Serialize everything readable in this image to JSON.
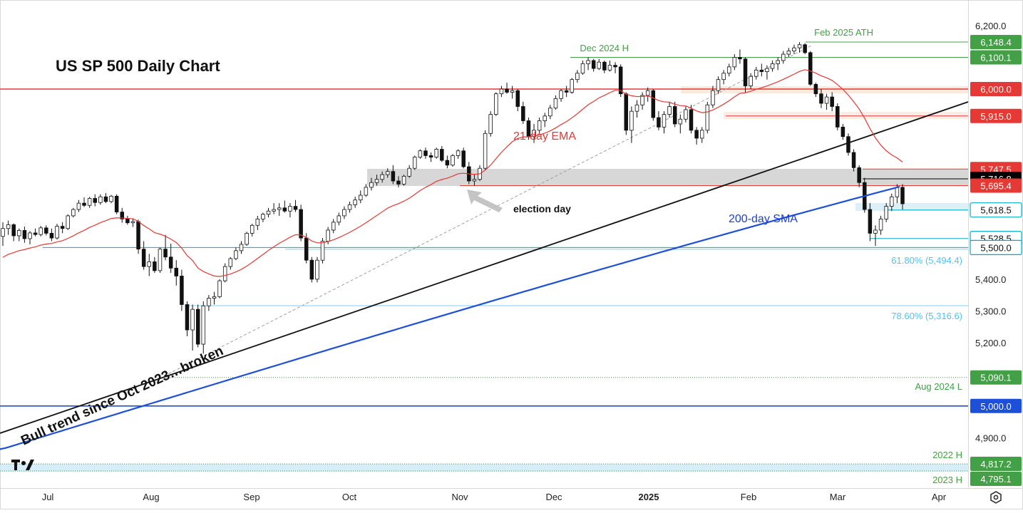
{
  "title": "US SP 500 Daily Chart",
  "chart_data": {
    "type": "candlestick",
    "title": "US SP 500 Daily Chart",
    "x_labels": [
      "Jul",
      "Aug",
      "Sep",
      "Oct",
      "Nov",
      "Dec",
      "2025",
      "Feb",
      "Mar",
      "Apr"
    ],
    "x_labels_bold": [
      "2025"
    ],
    "y_ticks": [
      "6,200.0",
      "5,400.0",
      "5,300.0",
      "5,200.0",
      "4,900.0"
    ],
    "ylim": [
      4770,
      6235
    ],
    "levels": [
      {
        "value": 6148.4,
        "label": "6,148.4",
        "color": "#43a047",
        "style": "solid",
        "note": "Feb 2025 ATH"
      },
      {
        "value": 6100.1,
        "label": "6,100.1",
        "color": "#43a047",
        "style": "solid",
        "note": "Dec 2024 H"
      },
      {
        "value": 6000.0,
        "label": "6,000.0",
        "color": "#e53935",
        "style": "solid",
        "note": ""
      },
      {
        "value": 5915.0,
        "label": "5,915.0",
        "color": "#e53935",
        "style": "solid",
        "note": ""
      },
      {
        "value": 5747.5,
        "label": "5,747.5",
        "color": "#e53935",
        "style": "solid",
        "note": ""
      },
      {
        "value": 5716.8,
        "label": "5,716.8",
        "color": "#000000",
        "style": "solid",
        "note": ""
      },
      {
        "value": 5695.4,
        "label": "5,695.4",
        "color": "#e53935",
        "style": "solid",
        "note": ""
      },
      {
        "value": 5618.5,
        "label": "5,618.5",
        "color": "#00acc1",
        "style": "solid",
        "note": ""
      },
      {
        "value": 5528.5,
        "label": "5,528.5",
        "color": "#00acc1",
        "style": "solid",
        "note": ""
      },
      {
        "value": 5500.0,
        "label": "5,500.0",
        "color": "#00acc1",
        "style": "solid",
        "note": ""
      },
      {
        "value": 5090.1,
        "label": "5,090.1",
        "color": "#43a047",
        "style": "dotted",
        "note": "Aug 2024 L"
      },
      {
        "value": 5000.0,
        "label": "5,000.0",
        "color": "#1e4fd8",
        "style": "solid",
        "note": ""
      },
      {
        "value": 4817.2,
        "label": "4,817.2",
        "color": "#43a047",
        "style": "dotted",
        "note": "2022 H"
      },
      {
        "value": 4795.1,
        "label": "4,795.1",
        "color": "#43a047",
        "style": "dotted",
        "note": "2023 H"
      }
    ],
    "fib_levels": [
      {
        "value": 5494.4,
        "label": "61.80% (5,494.4)"
      },
      {
        "value": 5316.6,
        "label": "78.60% (5,316.6)"
      }
    ],
    "series": [
      {
        "name": "21-day EMA",
        "color": "#e53935"
      },
      {
        "name": "200-day SMA",
        "color": "#1e4fd8"
      }
    ],
    "annotations": {
      "election": "election day",
      "trend": "Bull trend since Oct 2023…broken"
    },
    "candles": [
      [
        5535,
        5580,
        5505,
        5560
      ],
      [
        5560,
        5585,
        5540,
        5572
      ],
      [
        5572,
        5576,
        5520,
        5537
      ],
      [
        5537,
        5560,
        5520,
        5554
      ],
      [
        5554,
        5566,
        5515,
        5528
      ],
      [
        5528,
        5552,
        5510,
        5546
      ],
      [
        5546,
        5560,
        5535,
        5541
      ],
      [
        5541,
        5568,
        5535,
        5562
      ],
      [
        5562,
        5570,
        5538,
        5545
      ],
      [
        5545,
        5560,
        5520,
        5530
      ],
      [
        5530,
        5575,
        5525,
        5567
      ],
      [
        5567,
        5580,
        5545,
        5560
      ],
      [
        5560,
        5605,
        5555,
        5600
      ],
      [
        5600,
        5625,
        5595,
        5620
      ],
      [
        5620,
        5650,
        5612,
        5640
      ],
      [
        5640,
        5658,
        5628,
        5633
      ],
      [
        5633,
        5660,
        5625,
        5655
      ],
      [
        5655,
        5668,
        5630,
        5642
      ],
      [
        5642,
        5668,
        5635,
        5660
      ],
      [
        5660,
        5672,
        5640,
        5645
      ],
      [
        5645,
        5666,
        5640,
        5662
      ],
      [
        5662,
        5668,
        5605,
        5612
      ],
      [
        5612,
        5625,
        5578,
        5590
      ],
      [
        5590,
        5600,
        5572,
        5578
      ],
      [
        5578,
        5590,
        5565,
        5582
      ],
      [
        5582,
        5588,
        5480,
        5495
      ],
      [
        5495,
        5520,
        5430,
        5440
      ],
      [
        5440,
        5480,
        5410,
        5455
      ],
      [
        5455,
        5470,
        5420,
        5427
      ],
      [
        5427,
        5500,
        5420,
        5495
      ],
      [
        5495,
        5540,
        5460,
        5470
      ],
      [
        5470,
        5512,
        5420,
        5435
      ],
      [
        5435,
        5460,
        5380,
        5410
      ],
      [
        5410,
        5430,
        5300,
        5320
      ],
      [
        5320,
        5330,
        5220,
        5240
      ],
      [
        5240,
        5320,
        5175,
        5305
      ],
      [
        5305,
        5320,
        5185,
        5195
      ],
      [
        5195,
        5330,
        5165,
        5316
      ],
      [
        5316,
        5350,
        5300,
        5340
      ],
      [
        5340,
        5360,
        5320,
        5345
      ],
      [
        5345,
        5400,
        5340,
        5395
      ],
      [
        5395,
        5450,
        5390,
        5440
      ],
      [
        5440,
        5470,
        5430,
        5465
      ],
      [
        5465,
        5500,
        5460,
        5490
      ],
      [
        5490,
        5520,
        5480,
        5510
      ],
      [
        5510,
        5550,
        5505,
        5545
      ],
      [
        5545,
        5575,
        5535,
        5570
      ],
      [
        5570,
        5600,
        5555,
        5590
      ],
      [
        5590,
        5610,
        5580,
        5605
      ],
      [
        5605,
        5625,
        5595,
        5615
      ],
      [
        5615,
        5640,
        5605,
        5620
      ],
      [
        5620,
        5640,
        5600,
        5625
      ],
      [
        5625,
        5648,
        5610,
        5615
      ],
      [
        5615,
        5640,
        5595,
        5630
      ],
      [
        5630,
        5650,
        5612,
        5620
      ],
      [
        5620,
        5635,
        5520,
        5530
      ],
      [
        5530,
        5545,
        5450,
        5460
      ],
      [
        5460,
        5470,
        5390,
        5400
      ],
      [
        5400,
        5470,
        5390,
        5460
      ],
      [
        5460,
        5530,
        5450,
        5520
      ],
      [
        5520,
        5565,
        5510,
        5555
      ],
      [
        5555,
        5590,
        5545,
        5580
      ],
      [
        5580,
        5610,
        5570,
        5600
      ],
      [
        5600,
        5630,
        5590,
        5620
      ],
      [
        5620,
        5645,
        5610,
        5635
      ],
      [
        5635,
        5660,
        5625,
        5650
      ],
      [
        5650,
        5680,
        5640,
        5665
      ],
      [
        5665,
        5700,
        5660,
        5690
      ],
      [
        5690,
        5720,
        5680,
        5705
      ],
      [
        5705,
        5730,
        5695,
        5715
      ],
      [
        5715,
        5740,
        5705,
        5730
      ],
      [
        5730,
        5750,
        5720,
        5740
      ],
      [
        5740,
        5760,
        5700,
        5710
      ],
      [
        5710,
        5725,
        5690,
        5700
      ],
      [
        5700,
        5730,
        5695,
        5725
      ],
      [
        5725,
        5760,
        5720,
        5750
      ],
      [
        5750,
        5790,
        5745,
        5785
      ],
      [
        5785,
        5810,
        5780,
        5805
      ],
      [
        5805,
        5815,
        5780,
        5790
      ],
      [
        5790,
        5800,
        5770,
        5785
      ],
      [
        5785,
        5815,
        5780,
        5810
      ],
      [
        5810,
        5820,
        5770,
        5775
      ],
      [
        5775,
        5790,
        5750,
        5760
      ],
      [
        5760,
        5795,
        5755,
        5790
      ],
      [
        5790,
        5810,
        5780,
        5805
      ],
      [
        5805,
        5815,
        5750,
        5755
      ],
      [
        5755,
        5770,
        5700,
        5710
      ],
      [
        5710,
        5730,
        5695,
        5715
      ],
      [
        5715,
        5760,
        5710,
        5750
      ],
      [
        5750,
        5870,
        5745,
        5860
      ],
      [
        5860,
        5930,
        5850,
        5920
      ],
      [
        5920,
        5990,
        5915,
        5985
      ],
      [
        5985,
        6010,
        5975,
        6000
      ],
      [
        6000,
        6020,
        5985,
        5990
      ],
      [
        5990,
        6010,
        5970,
        5995
      ],
      [
        5995,
        6000,
        5930,
        5945
      ],
      [
        5945,
        5960,
        5890,
        5900
      ],
      [
        5900,
        5910,
        5840,
        5850
      ],
      [
        5850,
        5890,
        5830,
        5870
      ],
      [
        5870,
        5910,
        5860,
        5900
      ],
      [
        5900,
        5925,
        5880,
        5915
      ],
      [
        5915,
        5950,
        5905,
        5940
      ],
      [
        5940,
        5980,
        5935,
        5970
      ],
      [
        5970,
        6000,
        5960,
        5995
      ],
      [
        5995,
        6010,
        5975,
        5990
      ],
      [
        5990,
        6035,
        5985,
        6030
      ],
      [
        6030,
        6060,
        6020,
        6050
      ],
      [
        6050,
        6090,
        6045,
        6080
      ],
      [
        6080,
        6100,
        6060,
        6090
      ],
      [
        6090,
        6095,
        6055,
        6065
      ],
      [
        6065,
        6095,
        6060,
        6085
      ],
      [
        6085,
        6090,
        6050,
        6060
      ],
      [
        6060,
        6090,
        6055,
        6075
      ],
      [
        6075,
        6085,
        6050,
        6070
      ],
      [
        6070,
        6078,
        5975,
        5985
      ],
      [
        5985,
        5990,
        5855,
        5870
      ],
      [
        5870,
        5945,
        5830,
        5930
      ],
      [
        5930,
        5965,
        5910,
        5950
      ],
      [
        5950,
        5990,
        5935,
        5980
      ],
      [
        5980,
        6005,
        5960,
        5995
      ],
      [
        5995,
        6000,
        5900,
        5910
      ],
      [
        5910,
        5930,
        5870,
        5880
      ],
      [
        5880,
        5930,
        5860,
        5920
      ],
      [
        5920,
        5960,
        5910,
        5945
      ],
      [
        5945,
        5960,
        5880,
        5890
      ],
      [
        5890,
        5920,
        5860,
        5905
      ],
      [
        5905,
        5945,
        5895,
        5935
      ],
      [
        5935,
        5950,
        5860,
        5870
      ],
      [
        5870,
        5880,
        5825,
        5845
      ],
      [
        5845,
        5880,
        5830,
        5870
      ],
      [
        5870,
        5960,
        5860,
        5950
      ],
      [
        5950,
        6010,
        5940,
        5995
      ],
      [
        5995,
        6040,
        5985,
        6030
      ],
      [
        6030,
        6060,
        6015,
        6050
      ],
      [
        6050,
        6080,
        6040,
        6070
      ],
      [
        6070,
        6110,
        6060,
        6100
      ],
      [
        6100,
        6125,
        6080,
        6095
      ],
      [
        6095,
        6100,
        5990,
        6010
      ],
      [
        6010,
        6050,
        6000,
        6040
      ],
      [
        6040,
        6070,
        6030,
        6060
      ],
      [
        6060,
        6080,
        6040,
        6055
      ],
      [
        6055,
        6075,
        6030,
        6065
      ],
      [
        6065,
        6090,
        6055,
        6080
      ],
      [
        6080,
        6100,
        6060,
        6090
      ],
      [
        6090,
        6120,
        6080,
        6110
      ],
      [
        6110,
        6130,
        6100,
        6120
      ],
      [
        6120,
        6140,
        6110,
        6130
      ],
      [
        6130,
        6148,
        6115,
        6140
      ],
      [
        6140,
        6145,
        6110,
        6115
      ],
      [
        6115,
        6120,
        6010,
        6015
      ],
      [
        6015,
        6020,
        5975,
        5985
      ],
      [
        5985,
        6000,
        5940,
        5955
      ],
      [
        5955,
        5985,
        5935,
        5975
      ],
      [
        5975,
        5990,
        5930,
        5945
      ],
      [
        5945,
        5955,
        5870,
        5880
      ],
      [
        5880,
        5890,
        5840,
        5850
      ],
      [
        5850,
        5860,
        5790,
        5800
      ],
      [
        5800,
        5810,
        5740,
        5752
      ],
      [
        5752,
        5760,
        5690,
        5705
      ],
      [
        5705,
        5720,
        5610,
        5620
      ],
      [
        5620,
        5640,
        5520,
        5545
      ],
      [
        5545,
        5570,
        5505,
        5555
      ],
      [
        5555,
        5600,
        5540,
        5590
      ],
      [
        5590,
        5640,
        5580,
        5630
      ],
      [
        5630,
        5670,
        5615,
        5660
      ],
      [
        5660,
        5700,
        5640,
        5690
      ],
      [
        5690,
        5700,
        5620,
        5638
      ]
    ]
  }
}
